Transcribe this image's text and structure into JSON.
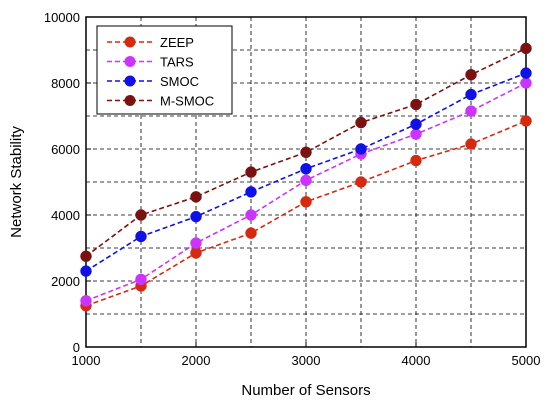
{
  "chart_data": {
    "type": "line",
    "xlabel": "Number of Sensors",
    "ylabel": "Network Stability",
    "x": [
      1000,
      1500,
      2000,
      2500,
      3000,
      3500,
      4000,
      4500,
      5000
    ],
    "xlim": [
      1000,
      5000
    ],
    "ylim": [
      0,
      10000
    ],
    "xticks": [
      "1000",
      "2000",
      "3000",
      "4000",
      "5000"
    ],
    "yticks": [
      "0",
      "2000",
      "4000",
      "6000",
      "8000",
      "10000"
    ],
    "grid": true,
    "legend_position": "top-left",
    "series": [
      {
        "name": "ZEEP",
        "color": "#d62a10",
        "values": [
          1250,
          1850,
          2850,
          3450,
          4400,
          5000,
          5650,
          6150,
          6850
        ]
      },
      {
        "name": "TARS",
        "color": "#cc33ff",
        "values": [
          1400,
          2050,
          3150,
          4000,
          5050,
          5850,
          6450,
          7150,
          8000
        ]
      },
      {
        "name": "SMOC",
        "color": "#1010e8",
        "values": [
          2300,
          3350,
          3950,
          4700,
          5400,
          6000,
          6750,
          7650,
          8300
        ]
      },
      {
        "name": "M-SMOC",
        "color": "#7a1212",
        "values": [
          2750,
          4000,
          4550,
          5300,
          5900,
          6800,
          7350,
          8250,
          9050
        ]
      }
    ]
  }
}
